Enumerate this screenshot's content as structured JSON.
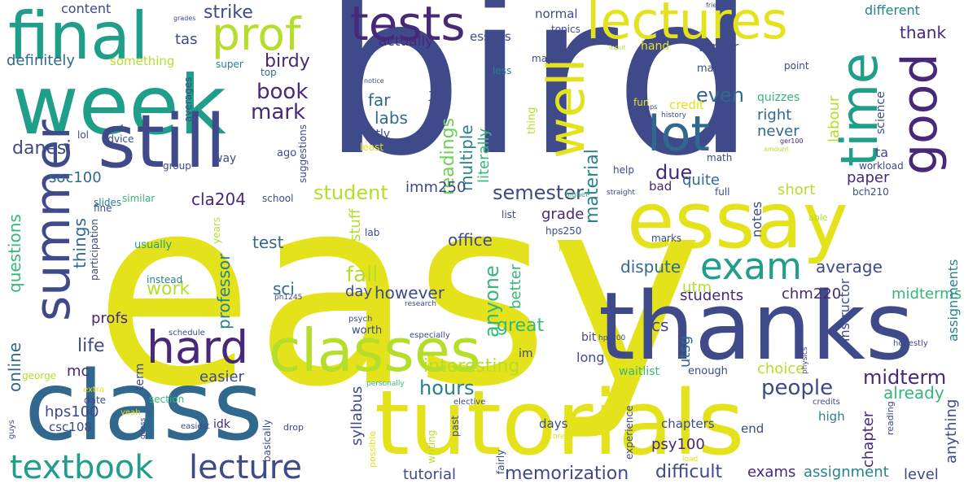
{
  "palette": {
    "purple": "#482878",
    "indigo": "#3e4a89",
    "blue": "#31688e",
    "teal": "#26828e",
    "green": "#1f9e89",
    "mint": "#35b779",
    "lime": "#6ece58",
    "yellowgreen": "#b5de2b",
    "yellow": "#e4e21a",
    "deep": "#440154"
  },
  "words": [
    {
      "text": "easy",
      "color": "#e4e21a"
    },
    {
      "text": "bird",
      "color": "#3e4a89"
    },
    {
      "text": "thanks",
      "color": "#3e4a89"
    },
    {
      "text": "class",
      "color": "#31688e"
    },
    {
      "text": "tutorials",
      "color": "#e4e21a"
    },
    {
      "text": "week",
      "color": "#1f9e89"
    },
    {
      "text": "essay",
      "color": "#e4e21a"
    },
    {
      "text": "classes",
      "color": "#b5de2b"
    },
    {
      "text": "still",
      "color": "#3e4a89"
    },
    {
      "text": "final",
      "color": "#1f9e89"
    },
    {
      "text": "summer",
      "color": "#3e4a89"
    },
    {
      "text": "tests",
      "color": "#482878"
    },
    {
      "text": "lectures",
      "color": "#e4e21a"
    },
    {
      "text": "prof",
      "color": "#b5de2b"
    },
    {
      "text": "well",
      "color": "#e4e21a"
    },
    {
      "text": "time",
      "color": "#1f9e89"
    },
    {
      "text": "good",
      "color": "#482878"
    },
    {
      "text": "lot",
      "color": "#31688e"
    },
    {
      "text": "hard",
      "color": "#482878"
    },
    {
      "text": "exam",
      "color": "#1f9e89"
    },
    {
      "text": "textbook",
      "color": "#1f9e89"
    },
    {
      "text": "lecture",
      "color": "#3e4a89"
    },
    {
      "text": "strike",
      "color": "#3e4a89"
    },
    {
      "text": "content",
      "color": "#3e4a89"
    },
    {
      "text": "tas",
      "color": "#3e4a89"
    },
    {
      "text": "definitely",
      "color": "#31688e"
    },
    {
      "text": "something",
      "color": "#b5de2b"
    },
    {
      "text": "birdy",
      "color": "#482878"
    },
    {
      "text": "book",
      "color": "#482878"
    },
    {
      "text": "mark",
      "color": "#482878"
    },
    {
      "text": "danesi",
      "color": "#3e4a89"
    },
    {
      "text": "readings",
      "color": "#6ece58"
    },
    {
      "text": "even",
      "color": "#31688e"
    },
    {
      "text": "labs",
      "color": "#31688e"
    },
    {
      "text": "far",
      "color": "#31688e"
    },
    {
      "text": "multiple",
      "color": "#26828e"
    },
    {
      "text": "literally",
      "color": "#35b779"
    },
    {
      "text": "material",
      "color": "#26828e"
    },
    {
      "text": "due",
      "color": "#482878"
    },
    {
      "text": "student",
      "color": "#b5de2b"
    },
    {
      "text": "semester",
      "color": "#3e4a89"
    },
    {
      "text": "imm250",
      "color": "#3e4a89"
    },
    {
      "text": "cla204",
      "color": "#482878"
    },
    {
      "text": "questions",
      "color": "#35b779"
    },
    {
      "text": "things",
      "color": "#31688e"
    },
    {
      "text": "soc100",
      "color": "#31688e"
    },
    {
      "text": "sci",
      "color": "#31688e"
    },
    {
      "text": "test",
      "color": "#31688e"
    },
    {
      "text": "work",
      "color": "#b5de2b"
    },
    {
      "text": "fall",
      "color": "#b5de2b"
    },
    {
      "text": "anyone",
      "color": "#35b779"
    },
    {
      "text": "professor",
      "color": "#26828e"
    },
    {
      "text": "life",
      "color": "#3e4a89"
    },
    {
      "text": "profs",
      "color": "#482878"
    },
    {
      "text": "online",
      "color": "#31688e"
    },
    {
      "text": "however",
      "color": "#3e4a89"
    },
    {
      "text": "day",
      "color": "#3e4a89"
    },
    {
      "text": "office",
      "color": "#3e4a89"
    },
    {
      "text": "grade",
      "color": "#482878"
    },
    {
      "text": "stuff",
      "color": "#b5de2b"
    },
    {
      "text": "better",
      "color": "#35b779"
    },
    {
      "text": "great",
      "color": "#35b779"
    },
    {
      "text": "hours",
      "color": "#26828e"
    },
    {
      "text": "interesting",
      "color": "#b5de2b"
    },
    {
      "text": "people",
      "color": "#3e4a89"
    },
    {
      "text": "midterm",
      "color": "#482878"
    },
    {
      "text": "already",
      "color": "#35b779"
    },
    {
      "text": "dispute",
      "color": "#31688e"
    },
    {
      "text": "average",
      "color": "#3e4a89"
    },
    {
      "text": "students",
      "color": "#482878"
    },
    {
      "text": "chm220",
      "color": "#482878"
    },
    {
      "text": "midterms",
      "color": "#35b779"
    },
    {
      "text": "cs",
      "color": "#3e4a89"
    },
    {
      "text": "utsg",
      "color": "#31688e"
    },
    {
      "text": "utm",
      "color": "#b5de2b"
    },
    {
      "text": "choice",
      "color": "#b5de2b"
    },
    {
      "text": "easier",
      "color": "#3e4a89"
    },
    {
      "text": "mc",
      "color": "#482878"
    },
    {
      "text": "hps100",
      "color": "#3e4a89"
    },
    {
      "text": "csc108",
      "color": "#3e4a89"
    },
    {
      "text": "psy100",
      "color": "#482878"
    },
    {
      "text": "memorization",
      "color": "#3e4a89"
    },
    {
      "text": "difficult",
      "color": "#3e4a89"
    },
    {
      "text": "exams",
      "color": "#482878"
    },
    {
      "text": "assignment",
      "color": "#26828e"
    },
    {
      "text": "level",
      "color": "#3e4a89"
    },
    {
      "text": "tutorial",
      "color": "#3e4a89"
    },
    {
      "text": "chapters",
      "color": "#3e4a89"
    },
    {
      "text": "days",
      "color": "#3e4a89"
    },
    {
      "text": "end",
      "color": "#3e4a89"
    },
    {
      "text": "high",
      "color": "#26828e"
    },
    {
      "text": "syllabus",
      "color": "#3e4a89"
    },
    {
      "text": "chapter",
      "color": "#482878"
    },
    {
      "text": "anything",
      "color": "#3e4a89"
    },
    {
      "text": "paper",
      "color": "#482878"
    },
    {
      "text": "short",
      "color": "#b5de2b"
    },
    {
      "text": "bad",
      "color": "#482878"
    },
    {
      "text": "quite",
      "color": "#31688e"
    },
    {
      "text": "right",
      "color": "#31688e"
    },
    {
      "text": "never",
      "color": "#31688e"
    },
    {
      "text": "credit",
      "color": "#e4e21a"
    },
    {
      "text": "quizzes",
      "color": "#35b779"
    },
    {
      "text": "labour",
      "color": "#b5de2b"
    },
    {
      "text": "thank",
      "color": "#482878"
    },
    {
      "text": "different",
      "color": "#26828e"
    },
    {
      "text": "winter",
      "color": "#3e4a89"
    },
    {
      "text": "hand",
      "color": "#e4e21a"
    },
    {
      "text": "normal",
      "color": "#3e4a89"
    },
    {
      "text": "essays",
      "color": "#3e4a89"
    },
    {
      "text": "actually",
      "color": "#482878"
    },
    {
      "text": "topics",
      "color": "#3e4a89"
    },
    {
      "text": "maybe",
      "color": "#3e4a89"
    },
    {
      "text": "less",
      "color": "#26828e"
    },
    {
      "text": "super",
      "color": "#26828e"
    },
    {
      "text": "top",
      "color": "#31688e"
    },
    {
      "text": "lol",
      "color": "#3e4a89"
    },
    {
      "text": "advice",
      "color": "#3e4a89"
    },
    {
      "text": "averages",
      "color": "#3e4a89"
    },
    {
      "text": "lots",
      "color": "#3e4a89"
    },
    {
      "text": "suggestions",
      "color": "#3e4a89"
    },
    {
      "text": "mostly",
      "color": "#3e4a89"
    },
    {
      "text": "least",
      "color": "#e4e21a"
    },
    {
      "text": "ago",
      "color": "#3e4a89"
    },
    {
      "text": "way",
      "color": "#3e4a89"
    },
    {
      "text": "group",
      "color": "#3e4a89"
    },
    {
      "text": "slides",
      "color": "#26828e"
    },
    {
      "text": "similar",
      "color": "#35b779"
    },
    {
      "text": "school",
      "color": "#3e4a89"
    },
    {
      "text": "fine",
      "color": "#3e4a89"
    },
    {
      "text": "participation",
      "color": "#3e4a89"
    },
    {
      "text": "usually",
      "color": "#1f9e89"
    },
    {
      "text": "instead",
      "color": "#26828e"
    },
    {
      "text": "years",
      "color": "#b5de2b"
    },
    {
      "text": "lab",
      "color": "#3e4a89"
    },
    {
      "text": "george",
      "color": "#b5de2b"
    },
    {
      "text": "section",
      "color": "#35b779"
    },
    {
      "text": "term",
      "color": "#3e4a89"
    },
    {
      "text": "date",
      "color": "#3e4a89"
    },
    {
      "text": "extra",
      "color": "#e4e21a"
    },
    {
      "text": "idk",
      "color": "#482878"
    },
    {
      "text": "basically",
      "color": "#3e4a89"
    },
    {
      "text": "guys",
      "color": "#3e4a89"
    },
    {
      "text": "guess",
      "color": "#3e4a89"
    },
    {
      "text": "easiest",
      "color": "#3e4a89"
    },
    {
      "text": "yeah",
      "color": "#e4e21a"
    },
    {
      "text": "drop",
      "color": "#3e4a89"
    },
    {
      "text": "possible",
      "color": "#e4e21a"
    },
    {
      "text": "writing",
      "color": "#b5de2b"
    },
    {
      "text": "past",
      "color": "#3e4a89"
    },
    {
      "text": "fairly",
      "color": "#3e4a89"
    },
    {
      "text": "core",
      "color": "#e4e21a"
    },
    {
      "text": "elective",
      "color": "#3e4a89"
    },
    {
      "text": "personally",
      "color": "#35b779"
    },
    {
      "text": "ph1245",
      "color": "#3e4a89"
    },
    {
      "text": "psych",
      "color": "#3e4a89"
    },
    {
      "text": "research",
      "color": "#3e4a89"
    },
    {
      "text": "especially",
      "color": "#3e4a89"
    },
    {
      "text": "worth",
      "color": "#3e4a89"
    },
    {
      "text": "schedule",
      "color": "#3e4a89"
    },
    {
      "text": "im",
      "color": "#3e4a89"
    },
    {
      "text": "bit",
      "color": "#3e4a89"
    },
    {
      "text": "hps200",
      "color": "#3e4a89"
    },
    {
      "text": "waitlist",
      "color": "#35b779"
    },
    {
      "text": "enough",
      "color": "#3e4a89"
    },
    {
      "text": "experience",
      "color": "#3e4a89"
    },
    {
      "text": "load",
      "color": "#e4e21a"
    },
    {
      "text": "physics",
      "color": "#3e4a89"
    },
    {
      "text": "reading",
      "color": "#3e4a89"
    },
    {
      "text": "credits",
      "color": "#3e4a89"
    },
    {
      "text": "honestly",
      "color": "#3e4a89"
    },
    {
      "text": "hps250",
      "color": "#3e4a89"
    },
    {
      "text": "kind",
      "color": "#e4e21a"
    },
    {
      "text": "list",
      "color": "#3e4a89"
    },
    {
      "text": "higher",
      "color": "#35b779"
    },
    {
      "text": "marks",
      "color": "#3e4a89"
    },
    {
      "text": "able",
      "color": "#b5de2b"
    },
    {
      "text": "straight",
      "color": "#3e4a89"
    },
    {
      "text": "full",
      "color": "#3e4a89"
    },
    {
      "text": "bch210",
      "color": "#3e4a89"
    },
    {
      "text": "ta",
      "color": "#3e4a89"
    },
    {
      "text": "science",
      "color": "#3e4a89"
    },
    {
      "text": "workload",
      "color": "#3e4a89"
    },
    {
      "text": "help",
      "color": "#3e4a89"
    },
    {
      "text": "math",
      "color": "#3e4a89"
    },
    {
      "text": "ger100",
      "color": "#482878"
    },
    {
      "text": "amount",
      "color": "#b5de2b"
    },
    {
      "text": "history",
      "color": "#3e4a89"
    },
    {
      "text": "hps",
      "color": "#3e4a89"
    },
    {
      "text": "fun",
      "color": "#e4e21a"
    },
    {
      "text": "major",
      "color": "#3e4a89"
    },
    {
      "text": "point",
      "color": "#3e4a89"
    },
    {
      "text": "input",
      "color": "#b5de2b"
    },
    {
      "text": "notice",
      "color": "#3e4a89"
    },
    {
      "text": "thing",
      "color": "#b5de2b"
    },
    {
      "text": "friends",
      "color": "#3e4a89"
    },
    {
      "text": "grades",
      "color": "#3e4a89"
    },
    {
      "text": "notes",
      "color": "#3e4a89"
    },
    {
      "text": "instructor",
      "color": "#3e4a89"
    },
    {
      "text": "assignments",
      "color": "#26828e"
    },
    {
      "text": "long",
      "color": "#3e4a89"
    }
  ]
}
